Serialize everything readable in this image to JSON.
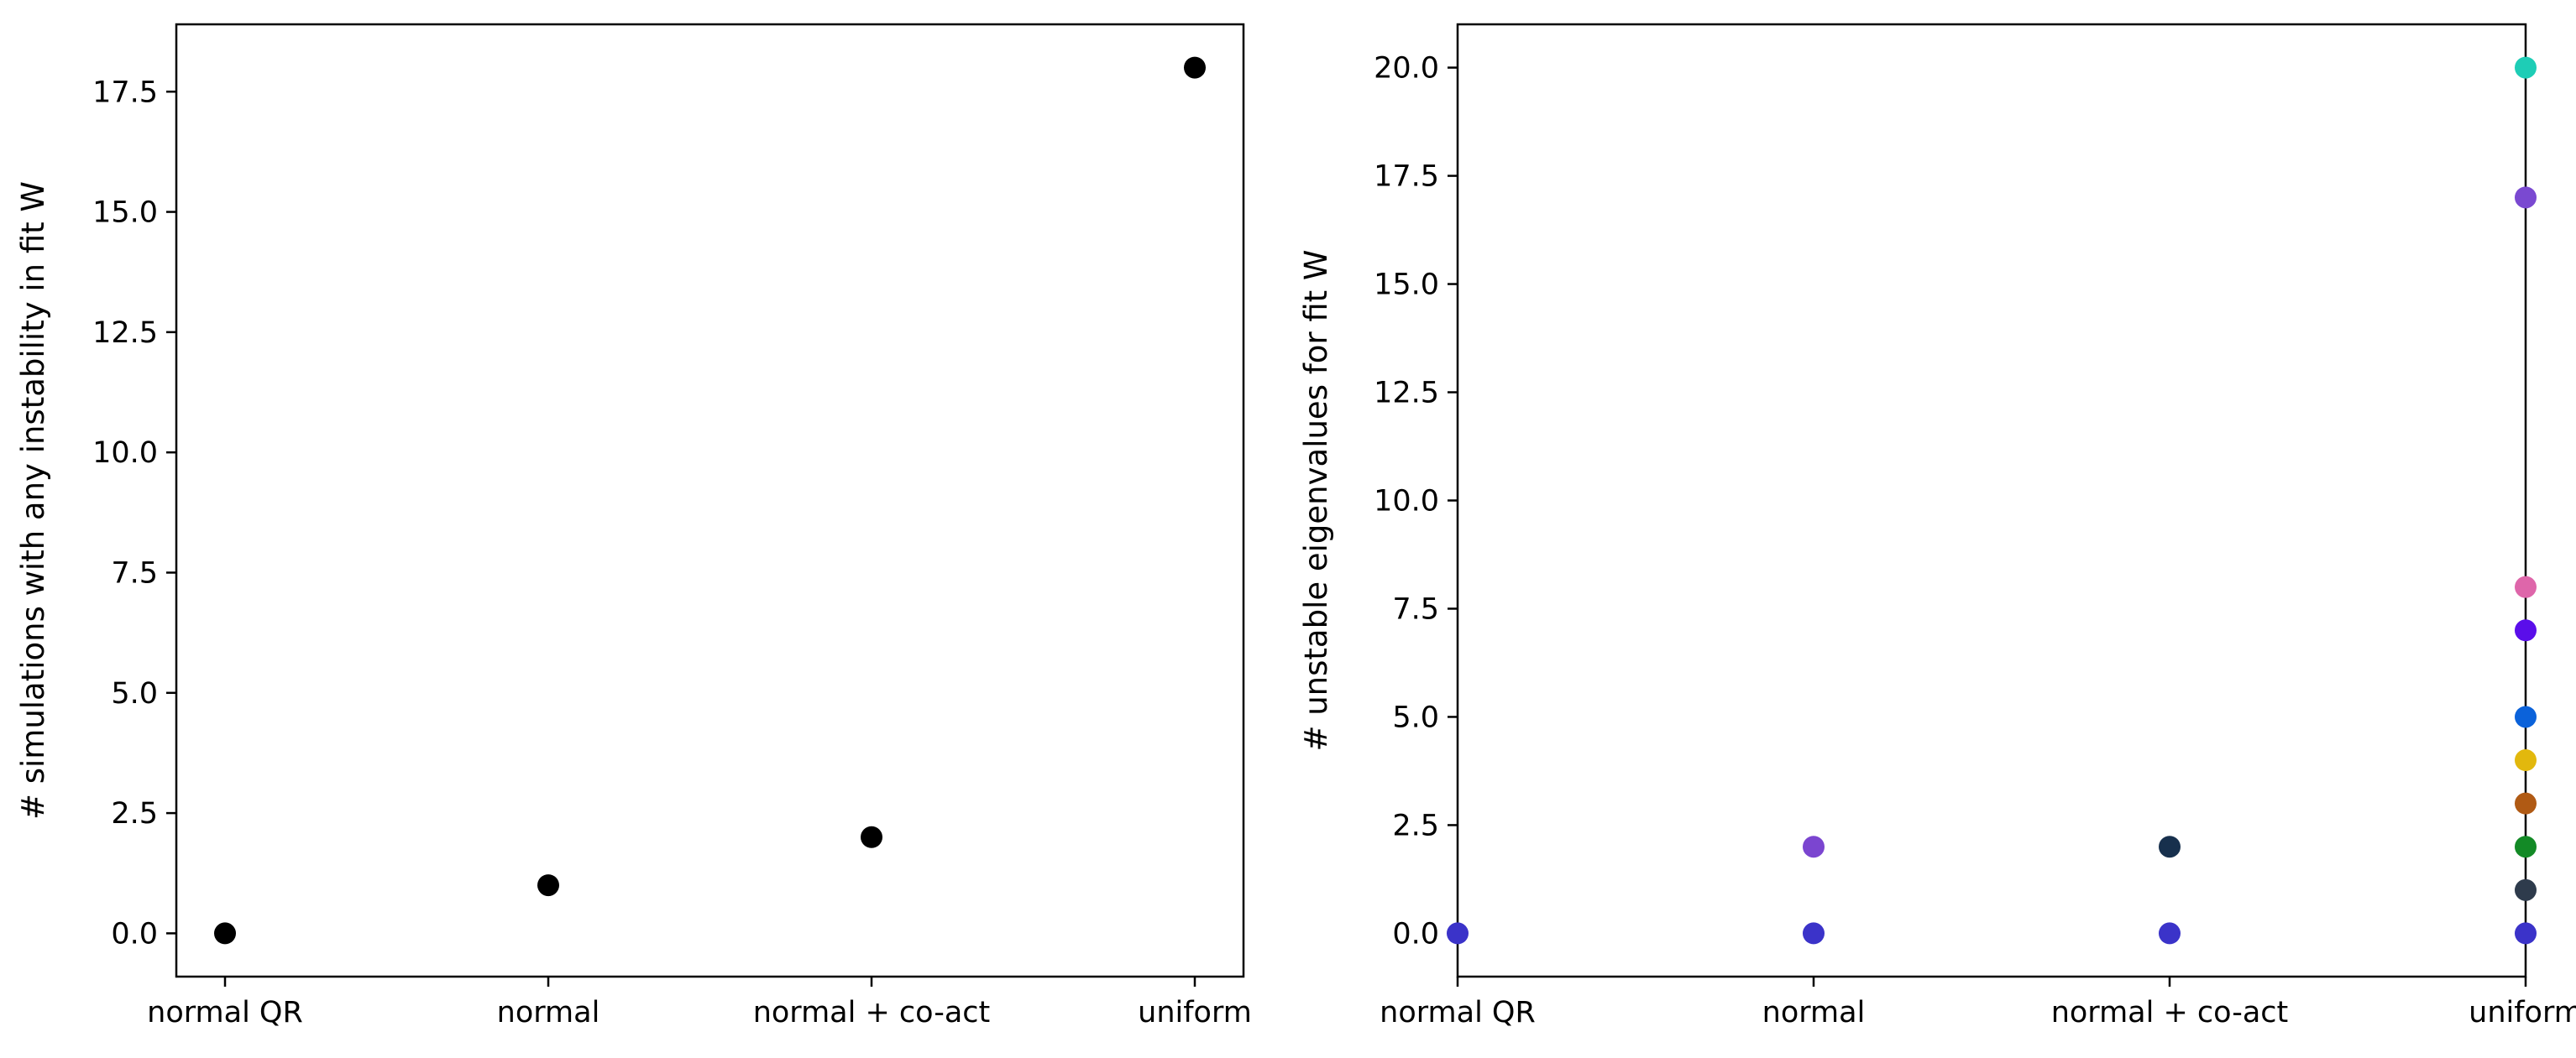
{
  "chart_data": [
    {
      "type": "scatter",
      "title": "",
      "xlabel": "",
      "ylabel": "# simulations with any instability in fit W",
      "categories": [
        "normal QR",
        "normal",
        "normal + co-act",
        "uniform"
      ],
      "yticks": [
        "0.0",
        "2.5",
        "5.0",
        "7.5",
        "10.0",
        "12.5",
        "15.0",
        "17.5"
      ],
      "ylim": [
        -0.9,
        18.9
      ],
      "grid": false,
      "series": [
        {
          "color": "#000000",
          "points": [
            {
              "x": "normal QR",
              "y": 0
            },
            {
              "x": "normal",
              "y": 1
            },
            {
              "x": "normal + co-act",
              "y": 2
            },
            {
              "x": "uniform",
              "y": 18
            }
          ]
        }
      ]
    },
    {
      "type": "scatter",
      "title": "",
      "xlabel": "",
      "ylabel": "# unstable eigenvalues for fit W",
      "categories": [
        "normal QR",
        "normal",
        "normal + co-act",
        "uniform"
      ],
      "yticks": [
        "0.0",
        "2.5",
        "5.0",
        "7.5",
        "10.0",
        "12.5",
        "15.0",
        "17.5",
        "20.0"
      ],
      "ylim": [
        -1.0,
        21.0
      ],
      "grid": false,
      "series": [
        {
          "color": "#3b33c9",
          "points": [
            {
              "x": "normal QR",
              "y": 0
            },
            {
              "x": "normal",
              "y": 0
            },
            {
              "x": "normal + co-act",
              "y": 0
            },
            {
              "x": "uniform",
              "y": 0
            }
          ]
        },
        {
          "color": "#7b45d0",
          "points": [
            {
              "x": "normal",
              "y": 2
            }
          ]
        },
        {
          "color": "#17304d",
          "points": [
            {
              "x": "normal + co-act",
              "y": 2
            }
          ]
        },
        {
          "color": "#2e3b4c",
          "points": [
            {
              "x": "uniform",
              "y": 1
            }
          ]
        },
        {
          "color": "#138a26",
          "points": [
            {
              "x": "uniform",
              "y": 2
            }
          ]
        },
        {
          "color": "#b05a14",
          "points": [
            {
              "x": "uniform",
              "y": 3
            }
          ]
        },
        {
          "color": "#e2b80d",
          "points": [
            {
              "x": "uniform",
              "y": 4
            }
          ]
        },
        {
          "color": "#0b62da",
          "points": [
            {
              "x": "uniform",
              "y": 5
            }
          ]
        },
        {
          "color": "#5a0eea",
          "points": [
            {
              "x": "uniform",
              "y": 7
            }
          ]
        },
        {
          "color": "#de66aa",
          "points": [
            {
              "x": "uniform",
              "y": 8
            }
          ]
        },
        {
          "color": "#7a49d1",
          "points": [
            {
              "x": "uniform",
              "y": 17
            }
          ]
        },
        {
          "color": "#1ecdb6",
          "points": [
            {
              "x": "uniform",
              "y": 20
            }
          ]
        }
      ]
    }
  ]
}
